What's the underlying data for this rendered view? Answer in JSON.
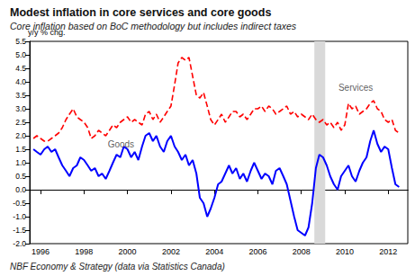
{
  "chart_data": {
    "type": "line",
    "title": "Modest inflation in core services and core goods",
    "subtitle": "Core inflation based on BoC methodology but includes indirect taxes",
    "y_label": "y/y % chg.",
    "source": "NBF Economy & Strategy (data via Statistics Canada)",
    "x": [
      1995.67,
      1995.83,
      1996,
      1996.17,
      1996.33,
      1996.5,
      1996.67,
      1996.83,
      1997,
      1997.17,
      1997.33,
      1997.5,
      1997.67,
      1997.83,
      1998,
      1998.17,
      1998.33,
      1998.5,
      1998.67,
      1998.83,
      1999,
      1999.17,
      1999.33,
      1999.5,
      1999.67,
      1999.83,
      2000,
      2000.17,
      2000.33,
      2000.5,
      2000.67,
      2000.83,
      2001,
      2001.17,
      2001.33,
      2001.5,
      2001.67,
      2001.83,
      2002,
      2002.17,
      2002.33,
      2002.5,
      2002.67,
      2002.83,
      2003,
      2003.17,
      2003.33,
      2003.5,
      2003.67,
      2003.83,
      2004,
      2004.17,
      2004.33,
      2004.5,
      2004.67,
      2004.83,
      2005,
      2005.17,
      2005.33,
      2005.5,
      2005.67,
      2005.83,
      2006,
      2006.17,
      2006.33,
      2006.5,
      2006.67,
      2006.83,
      2007,
      2007.17,
      2007.33,
      2007.5,
      2007.67,
      2007.83,
      2008,
      2008.17,
      2008.33,
      2008.5,
      2008.67,
      2008.83,
      2009,
      2009.17,
      2009.33,
      2009.5,
      2009.67,
      2009.83,
      2010,
      2010.17,
      2010.33,
      2010.5,
      2010.67,
      2010.83,
      2011,
      2011.17,
      2011.33,
      2011.5,
      2011.67,
      2011.83,
      2012,
      2012.17,
      2012.33,
      2012.5
    ],
    "series": [
      {
        "name": "Services",
        "color": "#ff0000",
        "line_style": "dashed",
        "values": [
          1.9,
          2.0,
          1.9,
          1.8,
          1.8,
          1.9,
          2.0,
          2.1,
          2.3,
          2.6,
          2.8,
          3.0,
          2.7,
          2.6,
          2.5,
          2.3,
          1.9,
          2.0,
          2.2,
          2.1,
          2.0,
          2.2,
          2.4,
          2.3,
          2.5,
          2.6,
          2.7,
          2.5,
          2.6,
          2.5,
          2.4,
          2.8,
          2.9,
          2.6,
          2.8,
          2.5,
          2.7,
          2.9,
          3.1,
          3.9,
          4.7,
          4.9,
          4.8,
          4.9,
          4.2,
          3.5,
          3.4,
          3.6,
          3.1,
          2.6,
          2.4,
          2.6,
          2.8,
          2.5,
          2.7,
          2.9,
          2.9,
          2.7,
          2.8,
          2.6,
          2.8,
          3.0,
          3.0,
          3.1,
          2.9,
          3.1,
          3.0,
          2.8,
          2.9,
          3.0,
          3.1,
          2.8,
          2.9,
          2.7,
          2.8,
          2.7,
          2.6,
          2.8,
          2.6,
          2.5,
          2.6,
          2.4,
          2.5,
          2.3,
          2.5,
          2.2,
          2.4,
          3.2,
          3.0,
          3.1,
          2.8,
          2.9,
          3.0,
          3.2,
          3.3,
          3.0,
          2.9,
          2.6,
          2.5,
          2.6,
          2.2,
          2.1
        ]
      },
      {
        "name": "Goods",
        "color": "#0000ff",
        "line_style": "solid",
        "values": [
          1.5,
          1.4,
          1.3,
          1.5,
          1.6,
          1.4,
          1.5,
          1.2,
          0.9,
          0.7,
          0.5,
          0.8,
          0.9,
          1.2,
          1.1,
          0.9,
          0.7,
          0.8,
          0.5,
          0.6,
          0.4,
          0.7,
          1.0,
          1.3,
          1.2,
          1.6,
          1.5,
          1.2,
          1.4,
          1.1,
          1.6,
          2.0,
          2.1,
          1.8,
          2.0,
          1.6,
          1.4,
          1.8,
          2.0,
          1.6,
          1.4,
          1.1,
          1.3,
          0.9,
          1.1,
          0.6,
          -0.3,
          -0.5,
          -1.0,
          -0.7,
          -0.3,
          0.2,
          0.3,
          0.6,
          0.9,
          0.6,
          0.8,
          0.4,
          0.6,
          0.3,
          0.7,
          1.0,
          0.7,
          0.4,
          0.6,
          0.5,
          0.2,
          0.7,
          0.8,
          0.5,
          0.2,
          -0.4,
          -1.0,
          -1.5,
          -1.6,
          -1.7,
          -1.4,
          -0.5,
          0.8,
          1.3,
          1.2,
          0.9,
          0.5,
          0.2,
          0.0,
          0.5,
          0.7,
          0.9,
          0.5,
          0.3,
          0.7,
          1.0,
          1.2,
          1.8,
          2.2,
          1.7,
          1.4,
          1.6,
          1.5,
          0.8,
          0.2,
          0.1
        ]
      }
    ],
    "xlim": [
      1995.5,
      2012.9
    ],
    "xticks": [
      1996,
      1998,
      2000,
      2002,
      2004,
      2006,
      2008,
      2010,
      2012
    ],
    "ylim": [
      -2,
      5.5
    ],
    "yticks": [
      {
        "value": -2,
        "label": "-2.0"
      },
      -1.5,
      {
        "value": -1,
        "label": "-1.0"
      },
      -0.5,
      {
        "value": 0,
        "label": "0.0"
      },
      0.5,
      {
        "value": 1,
        "label": "1.0"
      },
      1.5,
      {
        "value": 2,
        "label": "2.0"
      },
      2.5,
      {
        "value": 3,
        "label": "3.0"
      },
      3.5,
      {
        "value": 4,
        "label": "4.0"
      },
      4.5,
      {
        "value": 5,
        "label": "5.0"
      },
      5.5
    ],
    "grid": false,
    "shaded": [
      {
        "from": 2008.6,
        "to": 2009.1
      }
    ],
    "annotations": [
      {
        "text": "Services",
        "x": 2010.5,
        "y": 3.8
      },
      {
        "text": "Goods",
        "x": 1999.7,
        "y": 1.7
      }
    ]
  }
}
